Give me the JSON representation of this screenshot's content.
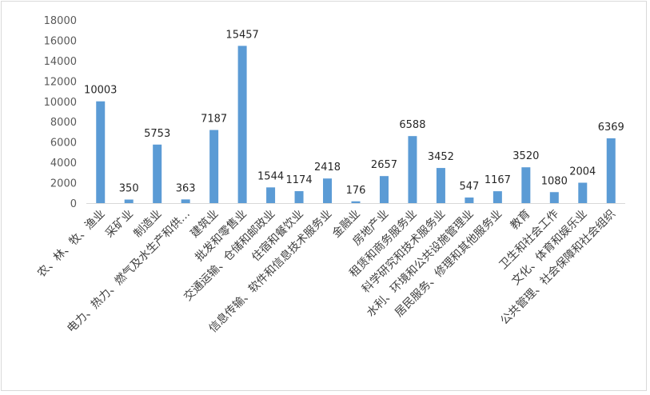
{
  "chart_data": {
    "type": "bar",
    "categories": [
      "农、林、牧、渔业",
      "采矿业",
      "制造业",
      "电力、热力、燃气及水生产和供…",
      "建筑业",
      "批发和零售业",
      "交通运输、仓储和邮政业",
      "住宿和餐饮业",
      "信息传输、软件和信息技术服务业",
      "金融业",
      "房地产业",
      "租赁和商务服务业",
      "科学研究和技术服务业",
      "水利、环境和公共设施管理业",
      "居民服务、修理和其他服务业",
      "教育",
      "卫生和社会工作",
      "文化、体育和娱乐业",
      "公共管理、社会保障和社会组织"
    ],
    "values": [
      10003,
      350,
      5753,
      363,
      7187,
      15457,
      1544,
      1174,
      2418,
      176,
      2657,
      6588,
      3452,
      547,
      1167,
      3520,
      1080,
      2004,
      6369
    ],
    "ylim": [
      0,
      18000
    ],
    "yticks": [
      0,
      2000,
      4000,
      6000,
      8000,
      10000,
      12000,
      14000,
      16000,
      18000
    ],
    "grid": false,
    "legend": "none",
    "bar_color": "#5b9bd5"
  }
}
